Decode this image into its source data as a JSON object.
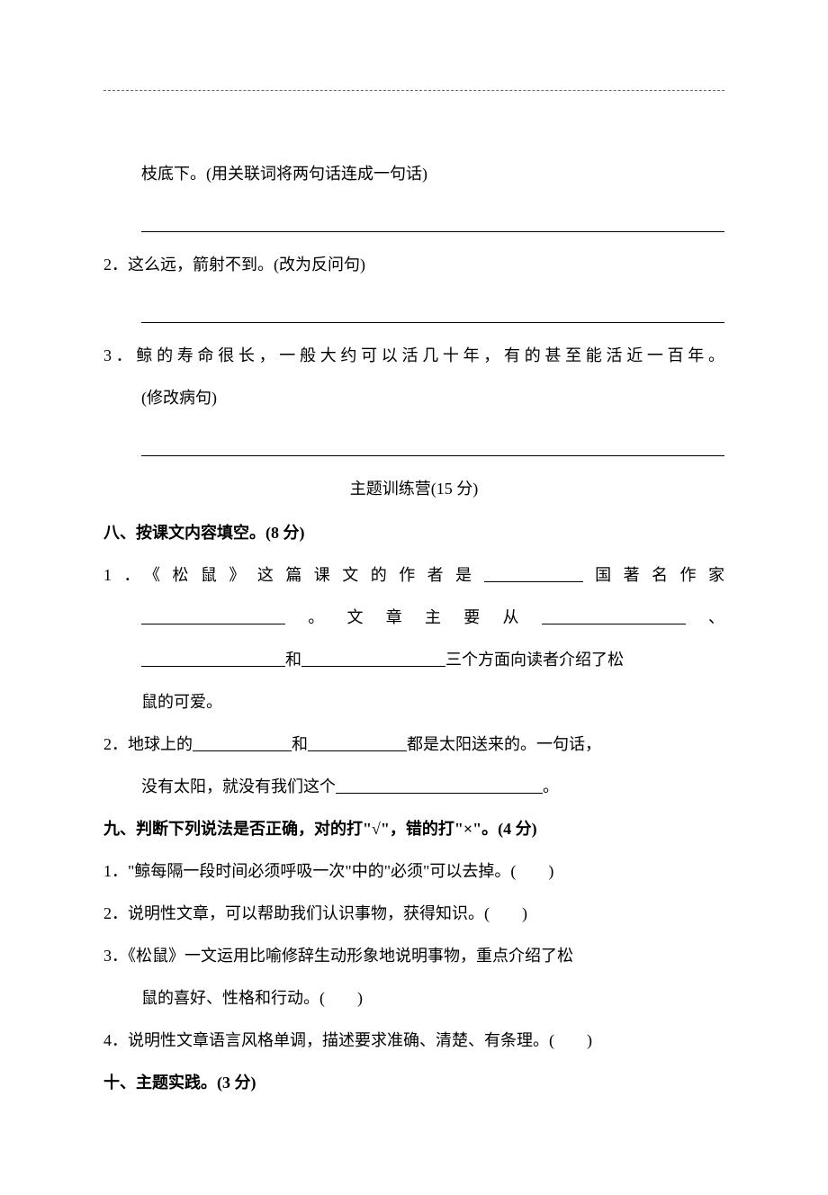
{
  "q_cont": {
    "line1": "枝底下。(用关联词将两句话连成一句话)"
  },
  "q2": {
    "text": "2．这么远，箭射不到。(改为反问句)"
  },
  "q3": {
    "line1": "3．鲸的寿命很长，一般大约可以活几十年，有的甚至能活近一百年。",
    "line2": "(修改病句)"
  },
  "section_title": "主题训练营(15 分)",
  "s8": {
    "heading": "八、按课文内容填空。(8 分)",
    "q1": {
      "part1_a": "1．《松鼠》这篇课文的作者是",
      "part1_b": "国著名作家",
      "part2_a": "。文章主要从",
      "part2_b": "、",
      "part3_a": "和",
      "part3_b": "三个方面向读者介绍了松",
      "part4": "鼠的可爱。"
    },
    "q2": {
      "part1_a": "2．地球上的",
      "part1_b": "和",
      "part1_c": "都是太阳送来的。一句话，",
      "part2_a": "没有太阳，就没有我们这个",
      "part2_b": "。"
    }
  },
  "s9": {
    "heading": "九、判断下列说法是否正确，对的打\"√\"，错的打\"×\"。(4 分)",
    "q1": "1．\"鲸每隔一段时间必须呼吸一次\"中的\"必须\"可以去掉。(　　)",
    "q2": "2．说明性文章，可以帮助我们认识事物，获得知识。(　　)",
    "q3_a": "3．《松鼠》一文运用比喻修辞生动形象地说明事物，重点介绍了松",
    "q3_b": "鼠的喜好、性格和行动。(　　)",
    "q4": "4．说明性文章语言风格单调，描述要求准确、清楚、有条理。(　　)"
  },
  "s10": {
    "heading": "十、主题实践。(3 分)"
  }
}
